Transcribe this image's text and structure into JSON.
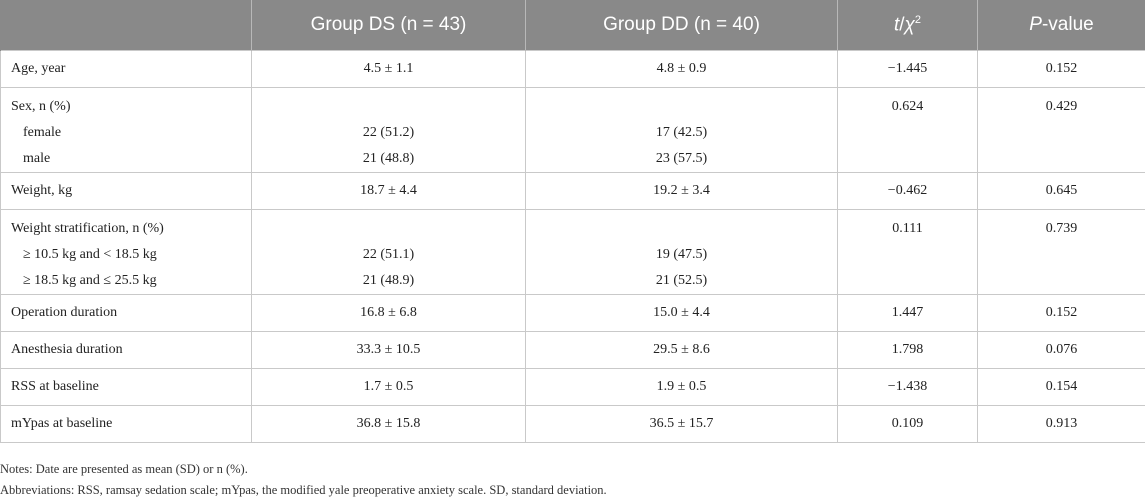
{
  "header": {
    "col1": "",
    "col2": "Group DS (n = 43)",
    "col3": "Group DD (n = 40)",
    "col4_t": "t",
    "col4_sep": "/",
    "col4_chi": "χ",
    "col4_sup": "2",
    "col5_p": "P",
    "col5_rest": "-value"
  },
  "rows": {
    "age": {
      "label": "Age, year",
      "ds": "4.5 ± 1.1",
      "dd": "4.8 ± 0.9",
      "t": "−1.445",
      "p": "0.152"
    },
    "sex": {
      "label": "Sex, n (%)",
      "t": "0.624",
      "p": "0.429",
      "sub1_label": "female",
      "sub1_ds": "22 (51.2)",
      "sub1_dd": "17 (42.5)",
      "sub2_label": "male",
      "sub2_ds": "21 (48.8)",
      "sub2_dd": "23 (57.5)"
    },
    "weight": {
      "label": "Weight, kg",
      "ds": "18.7 ± 4.4",
      "dd": "19.2 ± 3.4",
      "t": "−0.462",
      "p": "0.645"
    },
    "strat": {
      "label": "Weight stratification, n (%)",
      "t": "0.111",
      "p": "0.739",
      "sub1_label": "≥ 10.5 kg and < 18.5 kg",
      "sub1_ds": "22 (51.1)",
      "sub1_dd": "19 (47.5)",
      "sub2_label": "≥ 18.5 kg and ≤ 25.5 kg",
      "sub2_ds": "21 (48.9)",
      "sub2_dd": "21 (52.5)"
    },
    "op": {
      "label": "Operation duration",
      "ds": "16.8 ± 6.8",
      "dd": "15.0 ± 4.4",
      "t": "1.447",
      "p": "0.152"
    },
    "anes": {
      "label": "Anesthesia duration",
      "ds": "33.3 ± 10.5",
      "dd": "29.5 ± 8.6",
      "t": "1.798",
      "p": "0.076"
    },
    "rss": {
      "label": "RSS at baseline",
      "ds": "1.7 ± 0.5",
      "dd": "1.9 ± 0.5",
      "t": "−1.438",
      "p": "0.154"
    },
    "mypas": {
      "label": "mYpas at baseline",
      "ds": "36.8 ± 15.8",
      "dd": "36.5 ± 15.7",
      "t": "0.109",
      "p": "0.913"
    }
  },
  "notes": {
    "line1": "Notes: Date are presented as mean (SD) or n (%).",
    "line2": "Abbreviations: RSS, ramsay sedation scale; mYpas, the modified yale preoperative anxiety scale. SD, standard deviation."
  }
}
